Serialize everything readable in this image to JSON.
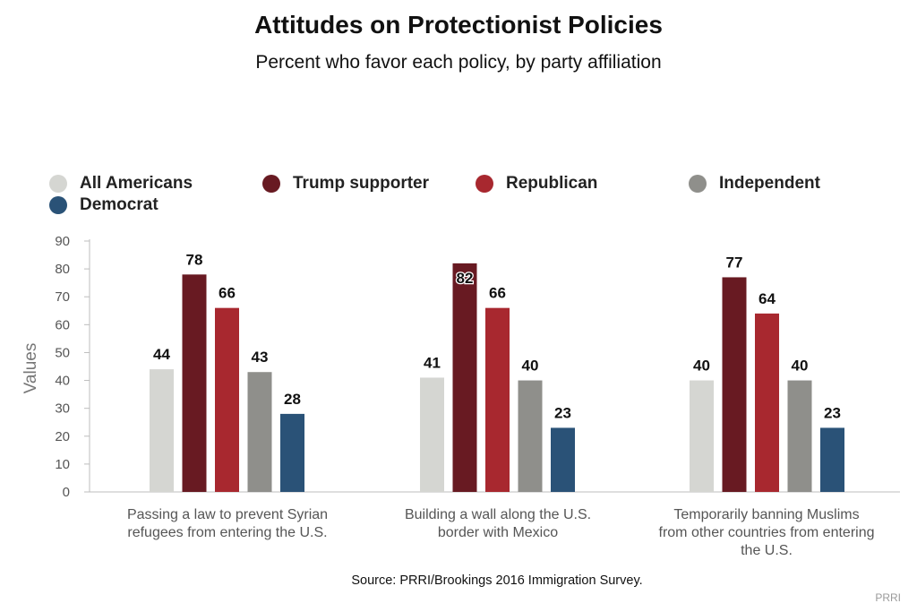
{
  "chart_data": {
    "type": "bar",
    "title": "Attitudes on Protectionist Policies",
    "subtitle": "Percent who favor each policy, by party affiliation",
    "ylabel": "Values",
    "ylim": [
      0,
      90
    ],
    "yticks": [
      0,
      10,
      20,
      30,
      40,
      50,
      60,
      70,
      80,
      90
    ],
    "grid": false,
    "legend_placement": "top",
    "categories": [
      "Passing a law to prevent Syrian refugees from entering the U.S.",
      "Building a wall along the U.S. border with Mexico",
      "Temporarily banning Muslims from other countries from entering the U.S."
    ],
    "category_lines": [
      [
        "Passing a law to prevent Syrian",
        "refugees from entering the U.S."
      ],
      [
        "Building a wall along the U.S.",
        "border with Mexico"
      ],
      [
        "Temporarily banning Muslims",
        "from other countries from entering",
        "the U.S."
      ]
    ],
    "series": [
      {
        "name": "All Americans",
        "color": "#d5d6d2",
        "values": [
          44,
          41,
          40
        ]
      },
      {
        "name": "Trump supporter",
        "color": "#681a22",
        "values": [
          78,
          82,
          77
        ]
      },
      {
        "name": "Republican",
        "color": "#a8282f",
        "values": [
          66,
          66,
          64
        ]
      },
      {
        "name": "Independent",
        "color": "#8f8f8b",
        "values": [
          43,
          40,
          40
        ]
      },
      {
        "name": "Democrat",
        "color": "#2a5277",
        "values": [
          28,
          23,
          23
        ]
      }
    ]
  },
  "source": "Source: PRRI/Brookings 2016 Immigration Survey.",
  "credit": "PRRI"
}
